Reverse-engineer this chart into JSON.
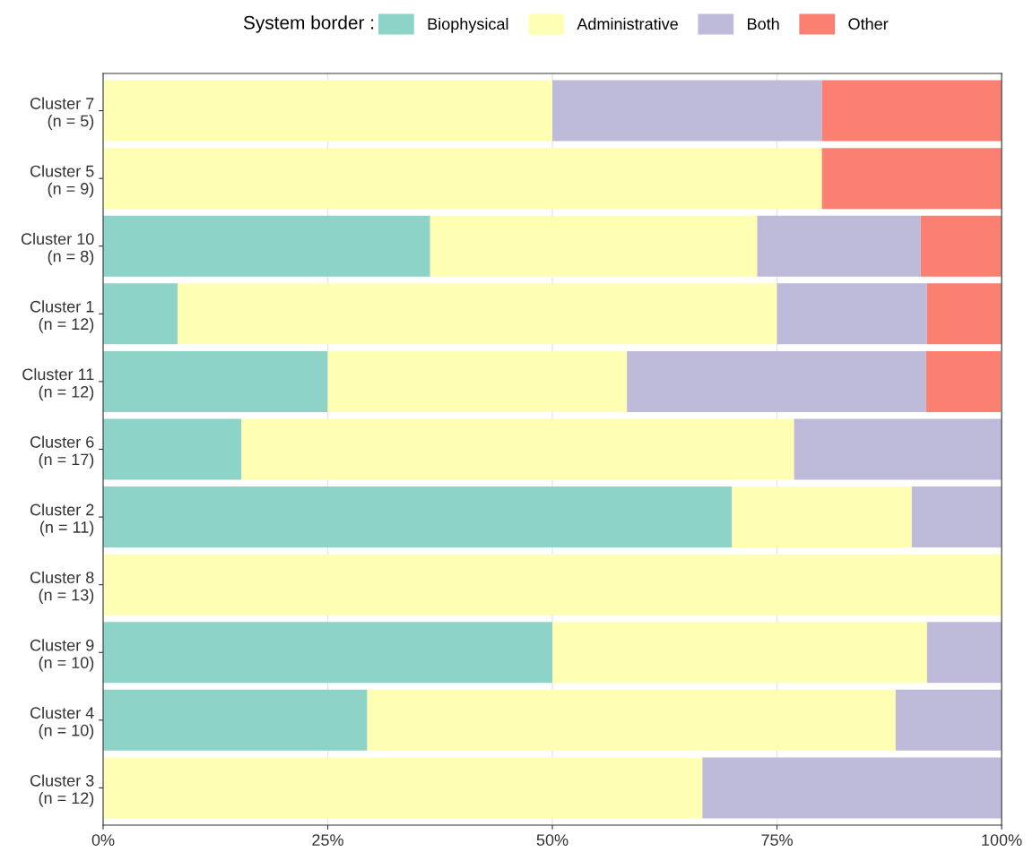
{
  "chart_data": {
    "type": "bar",
    "orientation": "horizontal",
    "stacked": true,
    "categories": [
      "Cluster 7\n(n = 5)",
      "Cluster 5\n(n = 9)",
      "Cluster 10\n(n = 8)",
      "Cluster 1\n(n = 12)",
      "Cluster 11\n(n = 12)",
      "Cluster 6\n(n = 17)",
      "Cluster 2\n(n = 11)",
      "Cluster 8\n(n = 13)",
      "Cluster 9\n(n = 10)",
      "Cluster 4\n(n = 10)",
      "Cluster 3\n(n = 12)"
    ],
    "series": [
      {
        "name": "Biophysical",
        "color": "#8dd3c7",
        "values": [
          0,
          0,
          36.4,
          8.3,
          25,
          15.4,
          70,
          0,
          50,
          29.4,
          0
        ]
      },
      {
        "name": "Administrative",
        "color": "#ffffb3",
        "values": [
          50,
          80,
          36.4,
          66.7,
          33.3,
          61.5,
          20,
          100,
          41.7,
          58.8,
          66.7
        ]
      },
      {
        "name": "Both",
        "color": "#bebada",
        "values": [
          30,
          0,
          18.2,
          16.7,
          33.3,
          23.1,
          10,
          0,
          8.3,
          11.8,
          33.3
        ]
      },
      {
        "name": "Other",
        "color": "#fb8072",
        "values": [
          20,
          20,
          9.1,
          8.3,
          8.3,
          0,
          0,
          0,
          0,
          0,
          0
        ]
      }
    ],
    "legend_title": "System border :",
    "legend": "top",
    "xlim": [
      0,
      100
    ],
    "xticks": [
      {
        "value": 0,
        "label": "0%"
      },
      {
        "value": 25,
        "label": "25%"
      },
      {
        "value": 50,
        "label": "50%"
      },
      {
        "value": 75,
        "label": "75%"
      },
      {
        "value": 100,
        "label": "100%"
      }
    ],
    "grid": "x"
  }
}
